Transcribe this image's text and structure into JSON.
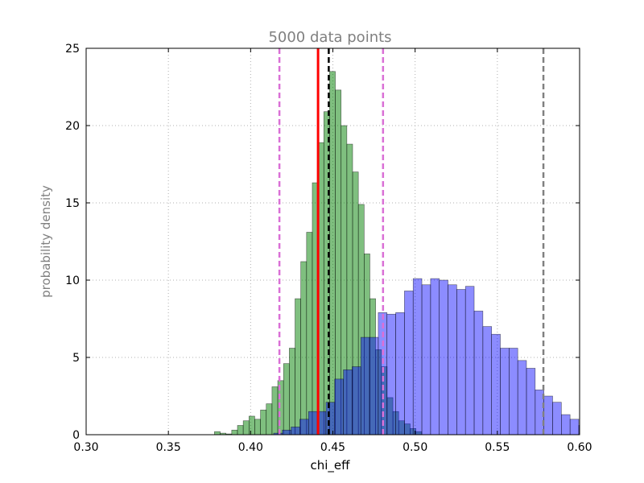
{
  "chart_data": {
    "type": "histogram",
    "title": "5000 data points",
    "xlabel": "chi_eff",
    "ylabel": "probability density",
    "xlim": [
      0.3,
      0.6
    ],
    "ylim": [
      0,
      25
    ],
    "x_ticks": [
      "0.30",
      "0.35",
      "0.40",
      "0.45",
      "0.50",
      "0.55",
      "0.60"
    ],
    "y_ticks": [
      "0",
      "5",
      "10",
      "15",
      "20",
      "25"
    ],
    "grid": true,
    "series": [
      {
        "color": "#008000",
        "opacity": 0.5,
        "bins": [
          [
            0.378,
            0.3815,
            0.2
          ],
          [
            0.3815,
            0.385,
            0.1
          ],
          [
            0.385,
            0.3885,
            0.05
          ],
          [
            0.3885,
            0.392,
            0.3
          ],
          [
            0.392,
            0.3955,
            0.6
          ],
          [
            0.3955,
            0.399,
            0.9
          ],
          [
            0.399,
            0.4025,
            1.2
          ],
          [
            0.4025,
            0.406,
            1.0
          ],
          [
            0.406,
            0.4095,
            1.6
          ],
          [
            0.4095,
            0.413,
            2.0
          ],
          [
            0.413,
            0.4165,
            3.1
          ],
          [
            0.4165,
            0.42,
            3.5
          ],
          [
            0.42,
            0.4235,
            4.6
          ],
          [
            0.4235,
            0.427,
            5.6
          ],
          [
            0.427,
            0.4305,
            8.8
          ],
          [
            0.4305,
            0.434,
            11.2
          ],
          [
            0.434,
            0.4375,
            13.1
          ],
          [
            0.4375,
            0.441,
            16.3
          ],
          [
            0.441,
            0.4445,
            18.9
          ],
          [
            0.4445,
            0.448,
            20.9
          ],
          [
            0.448,
            0.4515,
            23.5
          ],
          [
            0.4515,
            0.455,
            22.3
          ],
          [
            0.455,
            0.4585,
            20.0
          ],
          [
            0.4585,
            0.462,
            18.8
          ],
          [
            0.462,
            0.4655,
            17.0
          ],
          [
            0.4655,
            0.469,
            14.9
          ],
          [
            0.469,
            0.4725,
            11.7
          ],
          [
            0.4725,
            0.476,
            8.8
          ],
          [
            0.476,
            0.4795,
            5.5
          ],
          [
            0.4795,
            0.483,
            4.4
          ],
          [
            0.483,
            0.4865,
            2.4
          ],
          [
            0.4865,
            0.49,
            1.5
          ],
          [
            0.49,
            0.4935,
            0.9
          ],
          [
            0.4935,
            0.497,
            0.7
          ],
          [
            0.497,
            0.5005,
            0.4
          ],
          [
            0.5005,
            0.504,
            0.2
          ]
        ]
      },
      {
        "color": "#0000ff",
        "opacity": 0.45,
        "bins": [
          [
            0.414,
            0.4193,
            0.1
          ],
          [
            0.4193,
            0.4246,
            0.3
          ],
          [
            0.4246,
            0.4299,
            0.5
          ],
          [
            0.4299,
            0.4352,
            1.0
          ],
          [
            0.4352,
            0.4405,
            1.5
          ],
          [
            0.4405,
            0.4458,
            1.5
          ],
          [
            0.4458,
            0.4511,
            2.1
          ],
          [
            0.4511,
            0.4564,
            3.6
          ],
          [
            0.4564,
            0.4617,
            4.2
          ],
          [
            0.4617,
            0.467,
            4.4
          ],
          [
            0.467,
            0.4723,
            6.3
          ],
          [
            0.4723,
            0.4776,
            6.3
          ],
          [
            0.4776,
            0.4829,
            7.9
          ],
          [
            0.4829,
            0.4882,
            7.8
          ],
          [
            0.4882,
            0.4935,
            7.9
          ],
          [
            0.4935,
            0.4988,
            9.3
          ],
          [
            0.4988,
            0.5041,
            10.1
          ],
          [
            0.5041,
            0.5094,
            9.7
          ],
          [
            0.5094,
            0.5147,
            10.1
          ],
          [
            0.5147,
            0.52,
            10.0
          ],
          [
            0.52,
            0.5253,
            9.7
          ],
          [
            0.5253,
            0.5306,
            9.4
          ],
          [
            0.5306,
            0.5359,
            9.6
          ],
          [
            0.5359,
            0.5412,
            8.0
          ],
          [
            0.5412,
            0.5465,
            7.0
          ],
          [
            0.5465,
            0.5518,
            6.5
          ],
          [
            0.5518,
            0.5571,
            5.6
          ],
          [
            0.5571,
            0.5624,
            5.6
          ],
          [
            0.5624,
            0.5677,
            4.8
          ],
          [
            0.5677,
            0.573,
            4.3
          ],
          [
            0.573,
            0.5783,
            2.9
          ],
          [
            0.5783,
            0.5836,
            2.5
          ],
          [
            0.5836,
            0.5889,
            2.1
          ],
          [
            0.5889,
            0.5942,
            1.3
          ],
          [
            0.5942,
            0.5995,
            1.0
          ],
          [
            0.5995,
            0.6048,
            0.6
          ]
        ]
      }
    ],
    "vlines": [
      {
        "x": 0.441,
        "color": "#ff0000",
        "style": "solid"
      },
      {
        "x": 0.4475,
        "color": "#000000",
        "style": "dashed"
      },
      {
        "x": 0.4175,
        "color": "#da70d6",
        "style": "dashed"
      },
      {
        "x": 0.4805,
        "color": "#da70d6",
        "style": "dashed"
      },
      {
        "x": 0.578,
        "color": "#808080",
        "style": "dashed"
      }
    ]
  }
}
